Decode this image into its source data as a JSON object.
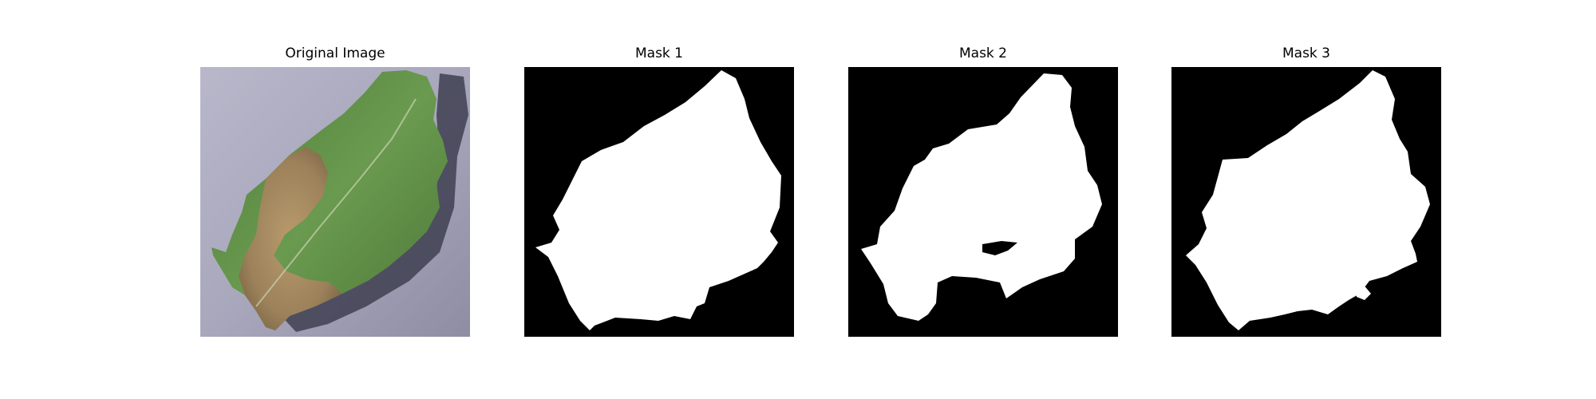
{
  "figure": {
    "panels": [
      {
        "title": "Original Image",
        "kind": "photo"
      },
      {
        "title": "Mask 1",
        "kind": "mask"
      },
      {
        "title": "Mask 2",
        "kind": "mask"
      },
      {
        "title": "Mask 3",
        "kind": "mask"
      }
    ],
    "colors": {
      "background": "#ffffff",
      "mask_background": "#000000",
      "mask_foreground": "#ffffff",
      "photo_surface": "#a8a6bb",
      "leaf_green": "#5f8a47",
      "leaf_diseased": "#a4895f",
      "shadow": "#3f3f52"
    }
  }
}
